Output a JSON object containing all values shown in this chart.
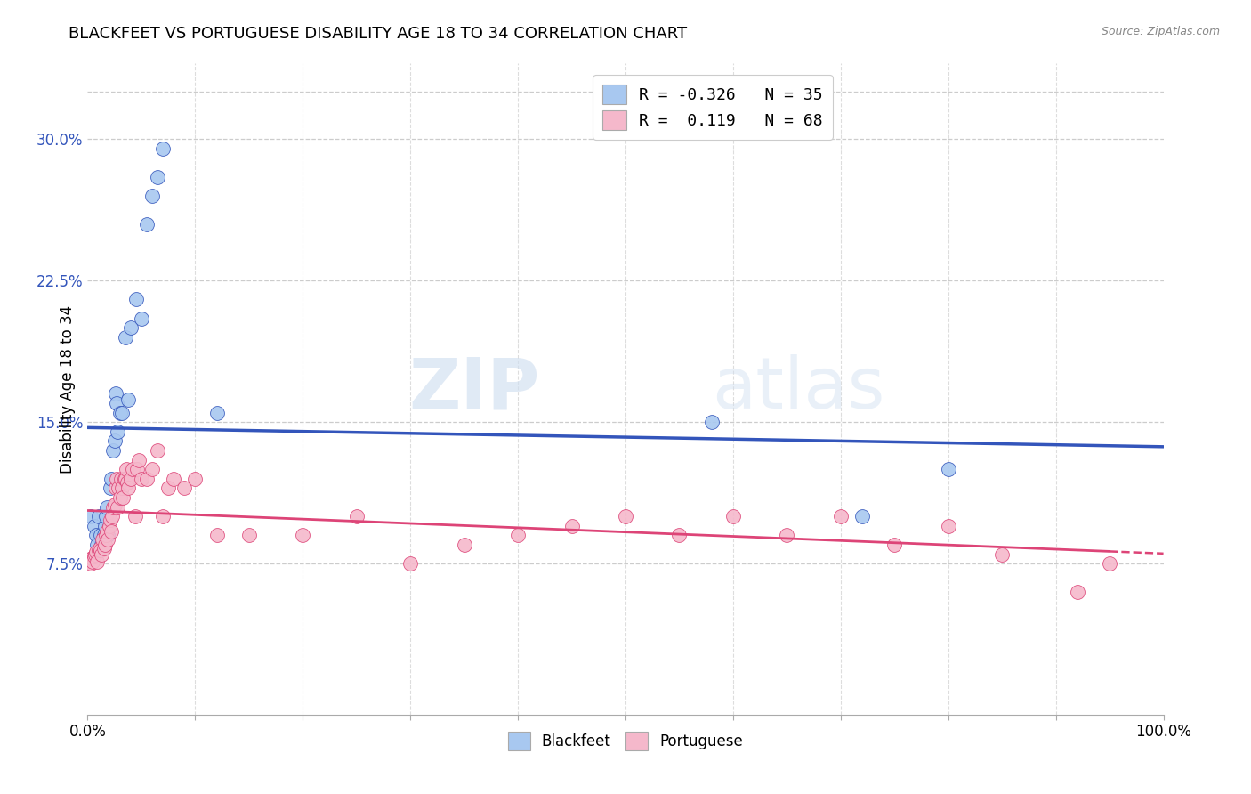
{
  "title": "BLACKFEET VS PORTUGUESE DISABILITY AGE 18 TO 34 CORRELATION CHART",
  "source": "Source: ZipAtlas.com",
  "ylabel": "Disability Age 18 to 34",
  "R1": "-0.326",
  "N1": "35",
  "R2": "0.119",
  "N2": "68",
  "color_blue": "#a8c8f0",
  "color_pink": "#f5b8cb",
  "line_blue": "#3355bb",
  "line_pink": "#dd4477",
  "watermark_zip": "ZIP",
  "watermark_atlas": "atlas",
  "legend_label1": "Blackfeet",
  "legend_label2": "Portuguese",
  "xlim": [
    0.0,
    1.0
  ],
  "ylim": [
    -0.005,
    0.34
  ],
  "yticks": [
    0.075,
    0.15,
    0.225,
    0.3
  ],
  "ytick_labels": [
    "7.5%",
    "15.0%",
    "22.5%",
    "30.0%"
  ],
  "blackfeet_x": [
    0.003,
    0.006,
    0.008,
    0.009,
    0.01,
    0.012,
    0.013,
    0.015,
    0.016,
    0.017,
    0.018,
    0.019,
    0.02,
    0.021,
    0.022,
    0.024,
    0.025,
    0.026,
    0.027,
    0.028,
    0.03,
    0.032,
    0.035,
    0.038,
    0.04,
    0.045,
    0.05,
    0.055,
    0.06,
    0.065,
    0.07,
    0.12,
    0.58,
    0.72,
    0.8
  ],
  "blackfeet_y": [
    0.1,
    0.095,
    0.09,
    0.085,
    0.1,
    0.09,
    0.085,
    0.09,
    0.095,
    0.1,
    0.105,
    0.09,
    0.095,
    0.115,
    0.12,
    0.135,
    0.14,
    0.165,
    0.16,
    0.145,
    0.155,
    0.155,
    0.195,
    0.162,
    0.2,
    0.215,
    0.205,
    0.255,
    0.27,
    0.28,
    0.295,
    0.155,
    0.15,
    0.1,
    0.125
  ],
  "portuguese_x": [
    0.003,
    0.004,
    0.005,
    0.006,
    0.007,
    0.008,
    0.009,
    0.01,
    0.011,
    0.012,
    0.013,
    0.014,
    0.015,
    0.016,
    0.017,
    0.018,
    0.019,
    0.02,
    0.021,
    0.022,
    0.023,
    0.024,
    0.025,
    0.026,
    0.027,
    0.028,
    0.029,
    0.03,
    0.031,
    0.032,
    0.033,
    0.034,
    0.035,
    0.036,
    0.037,
    0.038,
    0.04,
    0.042,
    0.044,
    0.046,
    0.048,
    0.05,
    0.055,
    0.06,
    0.065,
    0.07,
    0.075,
    0.08,
    0.09,
    0.1,
    0.12,
    0.15,
    0.2,
    0.25,
    0.3,
    0.35,
    0.4,
    0.45,
    0.5,
    0.55,
    0.6,
    0.65,
    0.7,
    0.75,
    0.8,
    0.85,
    0.92,
    0.95
  ],
  "portuguese_y": [
    0.075,
    0.078,
    0.076,
    0.079,
    0.08,
    0.081,
    0.076,
    0.082,
    0.083,
    0.082,
    0.08,
    0.088,
    0.083,
    0.085,
    0.09,
    0.092,
    0.088,
    0.095,
    0.098,
    0.092,
    0.1,
    0.105,
    0.106,
    0.115,
    0.12,
    0.105,
    0.115,
    0.11,
    0.12,
    0.115,
    0.11,
    0.12,
    0.12,
    0.125,
    0.118,
    0.115,
    0.12,
    0.125,
    0.1,
    0.125,
    0.13,
    0.12,
    0.12,
    0.125,
    0.135,
    0.1,
    0.115,
    0.12,
    0.115,
    0.12,
    0.09,
    0.09,
    0.09,
    0.1,
    0.075,
    0.085,
    0.09,
    0.095,
    0.1,
    0.09,
    0.1,
    0.09,
    0.1,
    0.085,
    0.095,
    0.08,
    0.06,
    0.075
  ]
}
